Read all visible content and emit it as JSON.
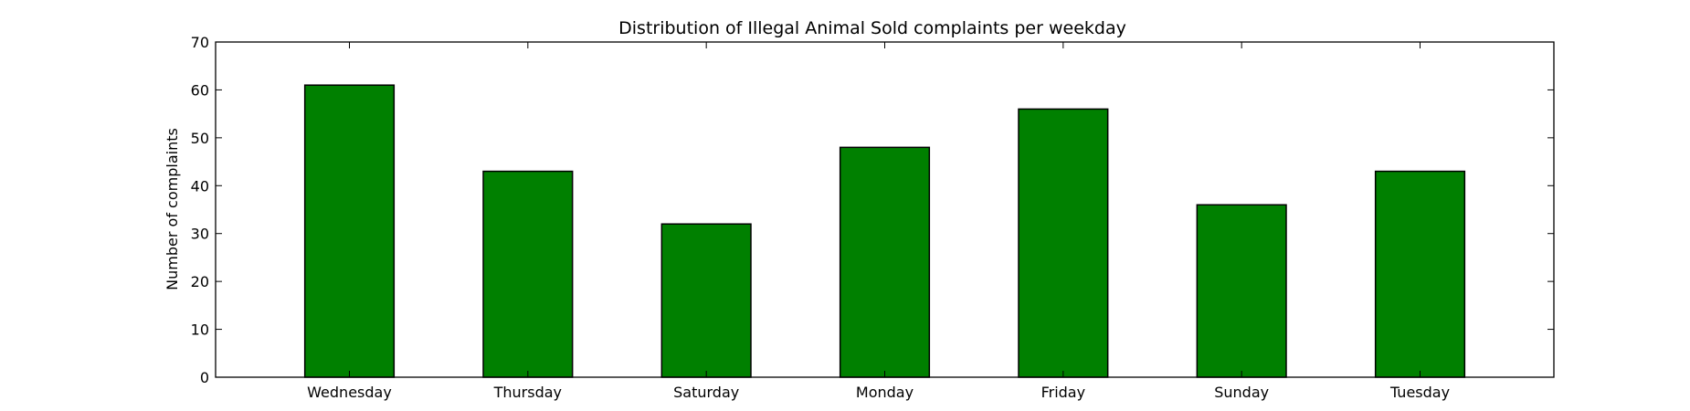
{
  "chart_data": {
    "type": "bar",
    "title": "Distribution of  Illegal Animal Sold complaints per weekday",
    "xlabel": "",
    "ylabel": "Number of complaints",
    "categories": [
      "Wednesday",
      "Thursday",
      "Saturday",
      "Monday",
      "Friday",
      "Sunday",
      "Tuesday"
    ],
    "values": [
      61,
      43,
      32,
      48,
      56,
      36,
      43
    ],
    "ylim": [
      0,
      70
    ],
    "yticks": [
      0,
      10,
      20,
      30,
      40,
      50,
      60,
      70
    ],
    "grid": false,
    "legend": "none",
    "bar_color": "#008000"
  }
}
